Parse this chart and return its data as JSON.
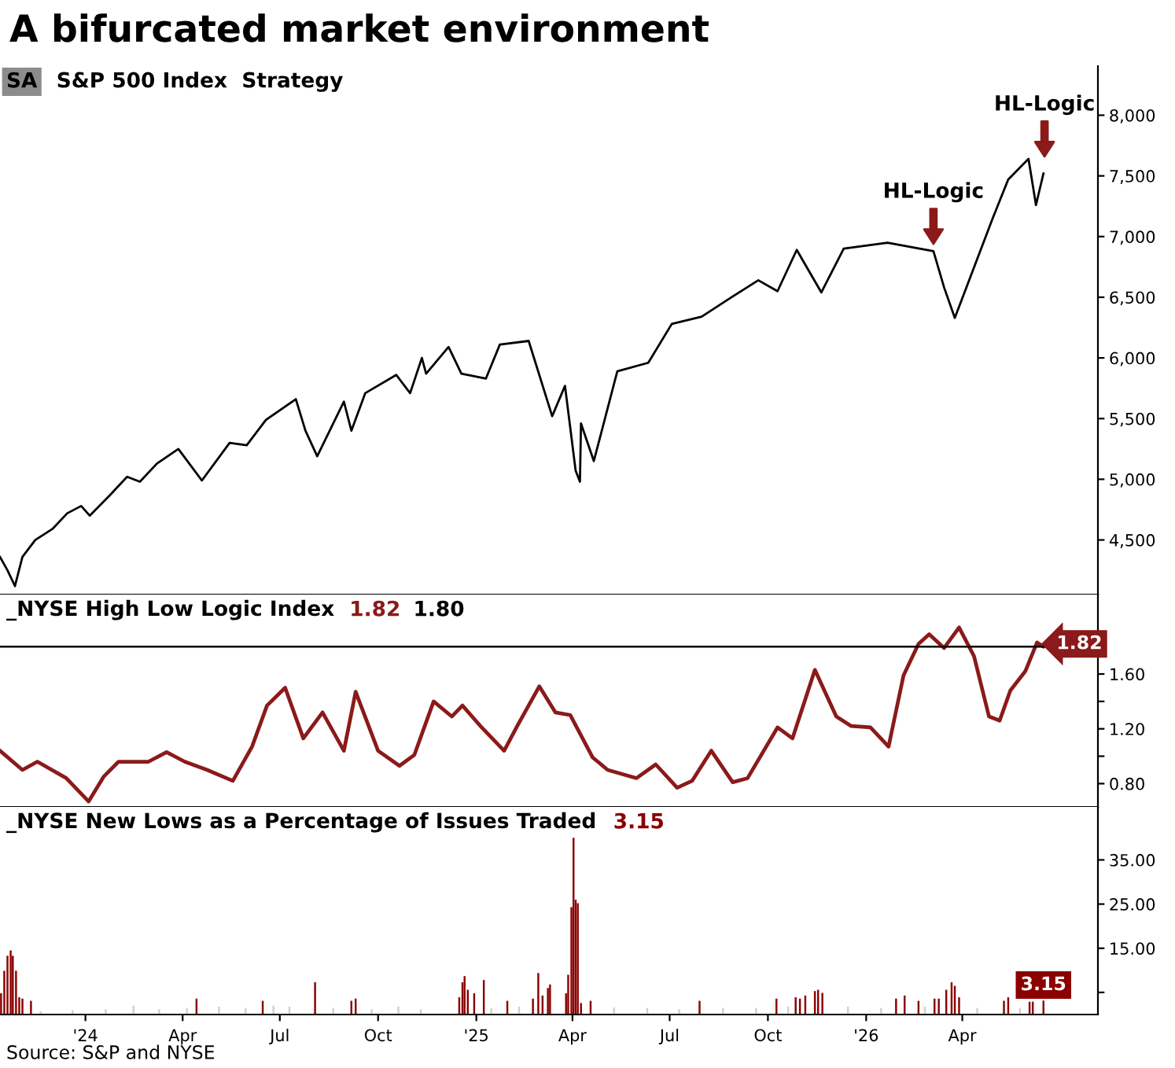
{
  "chart_data": [
    {
      "type": "line",
      "title": "A bifurcated market environment",
      "subtitle": "S&P 500 Index  Strategy",
      "annotations": [
        "SA",
        {
          "text": "HL-Logic",
          "x": "2026-03-05",
          "y": 6850
        },
        {
          "text": "HL-Logic",
          "x": "2026-06-17",
          "y": 7570
        }
      ],
      "x": [
        "2023-10-13",
        "2023-10-20",
        "2023-10-27",
        "2023-11-03",
        "2023-11-15",
        "2023-12-01",
        "2023-12-15",
        "2023-12-28",
        "2024-01-05",
        "2024-01-24",
        "2024-02-09",
        "2024-02-21",
        "2024-03-08",
        "2024-03-28",
        "2024-04-19",
        "2024-05-15",
        "2024-05-31",
        "2024-06-18",
        "2024-07-16",
        "2024-07-25",
        "2024-08-05",
        "2024-08-30",
        "2024-09-06",
        "2024-09-19",
        "2024-10-18",
        "2024-10-31",
        "2024-11-11",
        "2024-11-15",
        "2024-12-06",
        "2024-12-18",
        "2025-01-10",
        "2025-01-23",
        "2025-02-19",
        "2025-03-13",
        "2025-03-25",
        "2025-04-04",
        "2025-04-08",
        "2025-04-09",
        "2025-04-21",
        "2025-05-13",
        "2025-06-11",
        "2025-07-03",
        "2025-07-31",
        "2025-08-28",
        "2025-09-22",
        "2025-10-10",
        "2025-10-28",
        "2025-11-20",
        "2025-12-11",
        "2026-01-21",
        "2026-03-05",
        "2026-03-15",
        "2026-03-25",
        "2026-04-29",
        "2026-05-14",
        "2026-06-02",
        "2026-06-09",
        "2026-06-16"
      ],
      "series": [
        {
          "color": "#000000",
          "values": [
            4360,
            4250,
            4120,
            4360,
            4500,
            4590,
            4720,
            4780,
            4700,
            4870,
            5020,
            4980,
            5130,
            5250,
            4990,
            5300,
            5280,
            5490,
            5660,
            5400,
            5190,
            5640,
            5400,
            5710,
            5860,
            5710,
            6000,
            5870,
            6090,
            5870,
            5830,
            6110,
            6140,
            5520,
            5770,
            5070,
            4980,
            5460,
            5150,
            5890,
            5960,
            6280,
            6340,
            6500,
            6640,
            6550,
            6890,
            6540,
            6900,
            6950,
            6880,
            6580,
            6330,
            7140,
            7470,
            7640,
            7260,
            7520
          ]
        }
      ],
      "xlim": [
        "2023-10-13",
        "2026-08-06"
      ],
      "ylim": [
        4050,
        8405
      ],
      "yticks": [
        {
          "value": 4500,
          "label": "4,500"
        },
        {
          "value": 5000,
          "label": "5,000"
        },
        {
          "value": 5500,
          "label": "5,500"
        },
        {
          "value": 6000,
          "label": "6,000"
        },
        {
          "value": 6500,
          "label": "6,500"
        },
        {
          "value": 7000,
          "label": "7,000"
        },
        {
          "value": 7500,
          "label": "7,500"
        },
        {
          "value": 8000,
          "label": "8,000"
        }
      ],
      "tick_labels": "y"
    },
    {
      "type": "line",
      "title": "_NYSE High Low Logic Index",
      "x": [
        "2023-10-13",
        "2023-11-03",
        "2023-11-17",
        "2023-12-14",
        "2024-01-04",
        "2024-01-18",
        "2024-02-01",
        "2024-02-29",
        "2024-03-17",
        "2024-04-03",
        "2024-04-24",
        "2024-05-18",
        "2024-06-05",
        "2024-06-19",
        "2024-07-06",
        "2024-07-23",
        "2024-08-10",
        "2024-08-30",
        "2024-09-10",
        "2024-10-01",
        "2024-10-21",
        "2024-11-04",
        "2024-11-22",
        "2024-12-09",
        "2024-12-19",
        "2025-01-06",
        "2025-01-27",
        "2025-02-09",
        "2025-03-01",
        "2025-03-16",
        "2025-03-30",
        "2025-04-20",
        "2025-05-04",
        "2025-05-31",
        "2025-06-18",
        "2025-07-08",
        "2025-07-22",
        "2025-08-09",
        "2025-08-29",
        "2025-09-12",
        "2025-10-10",
        "2025-10-24",
        "2025-11-14",
        "2025-12-04",
        "2025-12-18",
        "2026-01-05",
        "2026-01-22",
        "2026-02-05",
        "2026-02-19",
        "2026-03-01",
        "2026-03-15",
        "2026-03-29",
        "2026-04-12",
        "2026-04-26",
        "2026-05-06",
        "2026-05-16",
        "2026-05-30",
        "2026-06-10",
        "2026-06-16",
        "2026-06-18"
      ],
      "series": [
        {
          "color": "#8b1a1a",
          "values": [
            1.04,
            0.9,
            0.96,
            0.84,
            0.67,
            0.85,
            0.96,
            0.96,
            1.03,
            0.96,
            0.9,
            0.82,
            1.07,
            1.37,
            1.5,
            1.13,
            1.32,
            1.04,
            1.47,
            1.04,
            0.93,
            1.01,
            1.4,
            1.29,
            1.37,
            1.21,
            1.04,
            1.23,
            1.51,
            1.32,
            1.3,
            0.99,
            0.9,
            0.84,
            0.94,
            0.77,
            0.82,
            1.04,
            0.81,
            0.84,
            1.21,
            1.13,
            1.63,
            1.29,
            1.22,
            1.21,
            1.07,
            1.59,
            1.82,
            1.89,
            1.79,
            1.94,
            1.73,
            1.29,
            1.26,
            1.48,
            1.62,
            1.83,
            1.8,
            1.82
          ],
          "value_labels": [
            null,
            null,
            null,
            null,
            null,
            null,
            null,
            null,
            null,
            null,
            null,
            null,
            null,
            null,
            null,
            null,
            null,
            null,
            null,
            null,
            null,
            null,
            null,
            null,
            null,
            null,
            null,
            null,
            null,
            null,
            null,
            null,
            null,
            null,
            null,
            null,
            null,
            null,
            null,
            null,
            null,
            null,
            null,
            null,
            null,
            null,
            null,
            null,
            null,
            null,
            null,
            null,
            null,
            null,
            null,
            null,
            null,
            null,
            null,
            "1.82"
          ]
        }
      ],
      "ref_lines": [
        {
          "axis": "y",
          "value": 1.8,
          "label": "1.80",
          "color": "#000000"
        }
      ],
      "xlim": [
        "2023-10-13",
        "2026-08-06"
      ],
      "ylim": [
        0.63,
        2.18
      ],
      "yticks": [
        {
          "value": 0.8,
          "label": "0.80"
        },
        {
          "value": 1.0,
          "label": null
        },
        {
          "value": 1.2,
          "label": "1.20"
        },
        {
          "value": 1.4,
          "label": null
        },
        {
          "value": 1.6,
          "label": "1.60"
        }
      ],
      "tick_labels": "y"
    },
    {
      "type": "bar",
      "title": "_NYSE New Lows as a Percentage of Issues Traded",
      "annotations": [
        "Source: S&P and NYSE"
      ],
      "series": [
        {
          "color": "#d0d0d0",
          "x": [
            "2023-11-20",
            "2023-12-20",
            "2024-01-20",
            "2024-02-15",
            "2024-03-10",
            "2024-04-05",
            "2024-05-05",
            "2024-05-30",
            "2024-06-25",
            "2024-07-10",
            "2024-08-20",
            "2024-09-25",
            "2024-10-20",
            "2024-11-10",
            "2025-01-15",
            "2025-02-10",
            "2025-05-10",
            "2025-06-10",
            "2025-07-10",
            "2025-08-20",
            "2025-09-20",
            "2025-10-20",
            "2025-12-15",
            "2026-01-15",
            "2026-02-25",
            "2026-04-15",
            "2026-05-25"
          ],
          "values": [
            0.8,
            1.0,
            1.2,
            2.0,
            1.2,
            1.5,
            1.8,
            1.5,
            2.0,
            1.8,
            1.5,
            1.2,
            1.8,
            1.2,
            1.5,
            1.8,
            1.6,
            1.5,
            1.2,
            1.5,
            1.5,
            1.8,
            1.8,
            1.5,
            1.8,
            1.5,
            1.5
          ]
        },
        {
          "color": "#8b0000",
          "x": [
            "2023-10-14",
            "2023-10-17",
            "2023-10-20",
            "2023-10-23",
            "2023-10-25",
            "2023-10-28",
            "2023-10-31",
            "2023-11-03",
            "2023-11-11",
            "2024-04-14",
            "2024-06-15",
            "2024-08-03",
            "2024-09-06",
            "2024-09-10",
            "2024-12-16",
            "2024-12-19",
            "2024-12-21",
            "2024-12-24",
            "2024-12-30",
            "2025-01-08",
            "2025-01-30",
            "2025-02-23",
            "2025-02-28",
            "2025-03-04",
            "2025-03-09",
            "2025-03-11",
            "2025-03-26",
            "2025-03-28",
            "2025-03-31",
            "2025-04-02",
            "2025-04-04",
            "2025-04-06",
            "2025-04-09",
            "2025-04-18",
            "2025-07-29",
            "2025-10-09",
            "2025-10-27",
            "2025-10-31",
            "2025-11-05",
            "2025-11-14",
            "2025-11-17",
            "2025-11-21",
            "2026-01-29",
            "2026-02-06",
            "2026-02-19",
            "2026-03-06",
            "2026-03-10",
            "2026-03-17",
            "2026-03-22",
            "2026-03-25",
            "2026-03-29",
            "2026-05-10",
            "2026-05-14",
            "2026-06-03",
            "2026-06-06",
            "2026-06-16"
          ],
          "values": [
            4.8,
            9.9,
            13.3,
            14.5,
            13.3,
            9.9,
            3.9,
            3.6,
            3.1,
            3.6,
            3.1,
            7.3,
            3.1,
            3.6,
            3.9,
            7.3,
            8.7,
            5.6,
            4.8,
            7.8,
            3.1,
            3.6,
            9.4,
            4.3,
            6.0,
            6.8,
            4.8,
            9.0,
            24.3,
            40.0,
            26.0,
            25.2,
            2.6,
            3.1,
            3.1,
            3.6,
            3.9,
            3.6,
            4.3,
            5.3,
            5.6,
            4.9,
            3.6,
            4.3,
            3.1,
            3.6,
            3.6,
            5.6,
            7.3,
            6.5,
            3.9,
            3.1,
            3.9,
            2.9,
            2.9,
            3.15
          ],
          "value_labels": [
            null,
            null,
            null,
            null,
            null,
            null,
            null,
            null,
            null,
            null,
            null,
            null,
            null,
            null,
            null,
            null,
            null,
            null,
            null,
            null,
            null,
            null,
            null,
            null,
            null,
            null,
            null,
            null,
            null,
            null,
            null,
            null,
            null,
            null,
            null,
            null,
            null,
            null,
            null,
            null,
            null,
            null,
            null,
            null,
            null,
            null,
            null,
            null,
            null,
            null,
            null,
            null,
            null,
            null,
            null,
            "3.15"
          ]
        }
      ],
      "xlim": [
        "2023-10-13",
        "2026-08-06"
      ],
      "ylim": [
        0,
        47
      ],
      "xticks": [
        {
          "value": "2024-01-01",
          "label": "'24"
        },
        {
          "value": "2024-04-01",
          "label": "Apr"
        },
        {
          "value": "2024-07-01",
          "label": "Jul"
        },
        {
          "value": "2024-10-01",
          "label": "Oct"
        },
        {
          "value": "2025-01-01",
          "label": "'25"
        },
        {
          "value": "2025-04-01",
          "label": "Apr"
        },
        {
          "value": "2025-07-01",
          "label": "Jul"
        },
        {
          "value": "2025-10-01",
          "label": "Oct"
        },
        {
          "value": "2026-01-01",
          "label": "'26"
        },
        {
          "value": "2026-04-01",
          "label": "Apr"
        }
      ],
      "yticks": [
        {
          "value": 5,
          "label": null
        },
        {
          "value": 15,
          "label": "15.00"
        },
        {
          "value": 25,
          "label": "25.00"
        },
        {
          "value": 35,
          "label": "35.00"
        }
      ]
    }
  ]
}
